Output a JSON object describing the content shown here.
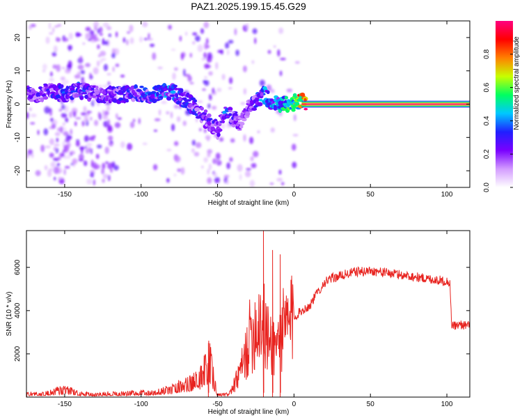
{
  "chart_data": [
    {
      "type": "heatmap",
      "title": "PAZ1.2025.199.15.45.G29",
      "xlabel": "Height of straight line (km)",
      "ylabel": "Frequency (Hz)",
      "xlim": [
        -175,
        115
      ],
      "ylim": [
        -25,
        25
      ],
      "xticks": [
        -150,
        -100,
        -50,
        0,
        50,
        100
      ],
      "yticks": [
        -20,
        -10,
        0,
        10,
        20
      ],
      "grid": false,
      "colorbar": {
        "label": "Normalized spectral amplitude",
        "range": [
          0,
          1
        ],
        "ticks": [
          0.0,
          0.2,
          0.4,
          0.6,
          0.8
        ],
        "colors": [
          "#ffffff",
          "#d39cff",
          "#7a00ff",
          "#2020ff",
          "#00c8ff",
          "#00ff60",
          "#c8ff00",
          "#ff8000",
          "#ff0000",
          "#ff0080"
        ]
      },
      "ridge": {
        "x": [
          -170,
          -160,
          -150,
          -140,
          -130,
          -120,
          -110,
          -100,
          -90,
          -80,
          -70,
          -60,
          -55,
          -50,
          -45,
          -40,
          -35,
          -30,
          -25,
          -20,
          -15,
          -10,
          -5,
          0,
          5,
          10,
          50,
          100,
          115
        ],
        "y": [
          3,
          4,
          3,
          4,
          3,
          3,
          3,
          3,
          3,
          4,
          1,
          -3,
          -6,
          -8,
          -2,
          -4,
          -6,
          -1,
          1,
          3,
          1,
          0,
          0,
          0.5,
          1,
          0,
          0,
          0,
          0
        ],
        "amplitude": [
          0.3,
          0.3,
          0.35,
          0.35,
          0.3,
          0.3,
          0.35,
          0.35,
          0.4,
          0.4,
          0.35,
          0.35,
          0.3,
          0.25,
          0.4,
          0.3,
          0.25,
          0.3,
          0.35,
          0.45,
          0.45,
          0.5,
          0.55,
          0.6,
          0.9,
          1.0,
          1.0,
          1.0,
          1.0
        ]
      }
    },
    {
      "type": "line",
      "xlabel": "Height of straight line (km)",
      "ylabel": "SNR (10 * v/v)",
      "xlim": [
        -175,
        115
      ],
      "ylim": [
        0,
        7700
      ],
      "xticks": [
        -150,
        -100,
        -50,
        0,
        50,
        100
      ],
      "yticks": [
        2000,
        4000,
        6000
      ],
      "grid": false,
      "series": [
        {
          "color": "#e8231f",
          "x": [
            -175,
            -165,
            -155,
            -150,
            -140,
            -130,
            -120,
            -110,
            -100,
            -90,
            -80,
            -75,
            -70,
            -65,
            -60,
            -57,
            -55,
            -52,
            -50,
            -45,
            -42,
            -40,
            -38,
            -35,
            -32,
            -30,
            -28,
            -25,
            -22,
            -20,
            -18,
            -15,
            -12,
            -10,
            -8,
            -5,
            -2,
            0,
            5,
            10,
            15,
            20,
            25,
            30,
            35,
            40,
            45,
            50,
            55,
            60,
            65,
            70,
            75,
            80,
            85,
            90,
            95,
            100,
            102,
            103,
            105,
            110,
            115
          ],
          "y": [
            150,
            120,
            250,
            300,
            150,
            100,
            150,
            150,
            180,
            200,
            300,
            450,
            500,
            700,
            900,
            1200,
            1500,
            600,
            100,
            100,
            200,
            400,
            700,
            1200,
            1800,
            2500,
            3000,
            3200,
            3700,
            3400,
            2800,
            2400,
            2400,
            2700,
            3000,
            3200,
            3500,
            3700,
            4000,
            4200,
            4800,
            5300,
            5500,
            5600,
            5700,
            5800,
            5800,
            5850,
            5800,
            5750,
            5700,
            5650,
            5600,
            5550,
            5500,
            5450,
            5400,
            5350,
            5300,
            3400,
            3300,
            3350,
            3300
          ],
          "spikes": [
            {
              "x": -56,
              "y": 2500
            },
            {
              "x": -20,
              "y": 7700
            },
            {
              "x": -14,
              "y": 6800
            },
            {
              "x": -9,
              "y": 6600
            }
          ]
        }
      ]
    }
  ]
}
